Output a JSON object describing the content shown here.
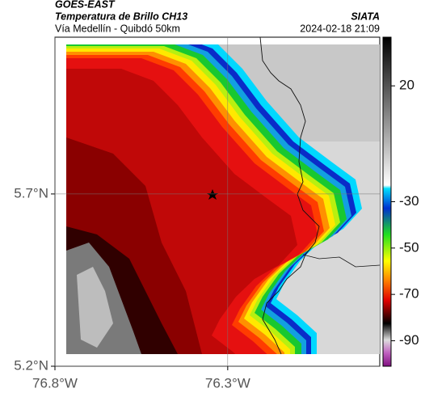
{
  "header": {
    "source": "GOES-EAST",
    "product": "Temperatura de Brillo CH13",
    "route": "Vía Medellín - Quibdó 50km",
    "agency": "SIATA",
    "timestamp": "2024-02-18 21:09"
  },
  "map": {
    "lon_range": [
      -76.8,
      -75.86
    ],
    "lat_range": [
      5.2,
      6.155
    ],
    "lat_ticks": [
      {
        "value": 5.7,
        "label": "5.7°N"
      },
      {
        "value": 5.2,
        "label": "5.2°N"
      }
    ],
    "lon_ticks": [
      {
        "value": -76.8,
        "label": "76.8°W"
      },
      {
        "value": -76.3,
        "label": "76.3°W"
      }
    ]
  },
  "colorbar": {
    "range": [
      -101,
      41
    ],
    "ticks": [
      20,
      -30,
      -50,
      -70,
      -90
    ]
  }
}
